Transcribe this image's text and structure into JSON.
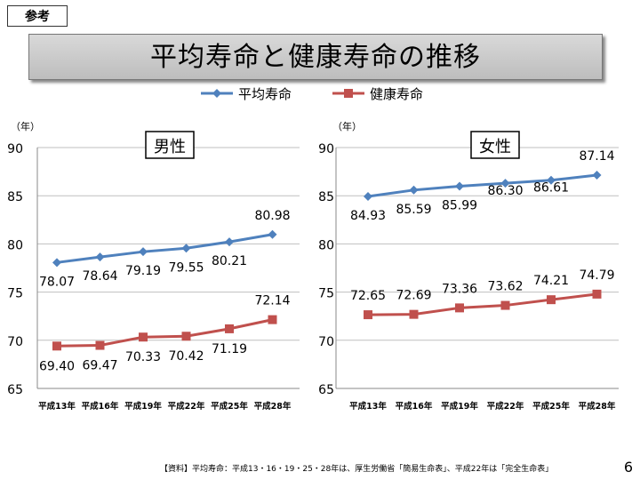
{
  "ref_label": "参考",
  "title": "平均寿命と健康寿命の推移",
  "legend": {
    "average": "平均寿命",
    "healthy": "健康寿命"
  },
  "colors": {
    "average": "#4f81bd",
    "healthy": "#c0504d",
    "grid": "#bfbfbf"
  },
  "chart_data": [
    {
      "type": "line",
      "title": "男性",
      "ylabel": "（年）",
      "ylim": [
        65,
        90
      ],
      "yticks": [
        65,
        70,
        75,
        80,
        85,
        90
      ],
      "categories": [
        "平成13年",
        "平成16年",
        "平成19年",
        "平成22年",
        "平成25年",
        "平成28年"
      ],
      "series": [
        {
          "name": "平均寿命",
          "values": [
            78.07,
            78.64,
            79.19,
            79.55,
            80.21,
            80.98
          ],
          "labels": [
            "78.07",
            "78.64",
            "79.19",
            "79.55",
            "80.21",
            "80.98"
          ]
        },
        {
          "name": "健康寿命",
          "values": [
            69.4,
            69.47,
            70.33,
            70.42,
            71.19,
            72.14
          ],
          "labels": [
            "69.40",
            "69.47",
            "70.33",
            "70.42",
            "71.19",
            "72.14"
          ]
        }
      ]
    },
    {
      "type": "line",
      "title": "女性",
      "ylabel": "（年）",
      "ylim": [
        65,
        90
      ],
      "yticks": [
        65,
        70,
        75,
        80,
        85,
        90
      ],
      "categories": [
        "平成13年",
        "平成16年",
        "平成19年",
        "平成22年",
        "平成25年",
        "平成28年"
      ],
      "series": [
        {
          "name": "平均寿命",
          "values": [
            84.93,
            85.59,
            85.99,
            86.3,
            86.61,
            87.14
          ],
          "labels": [
            "84.93",
            "85.59",
            "85.99",
            "86.30",
            "86.61",
            "87.14"
          ]
        },
        {
          "name": "健康寿命",
          "values": [
            72.65,
            72.69,
            73.36,
            73.62,
            74.21,
            74.79
          ],
          "labels": [
            "72.65",
            "72.69",
            "73.36",
            "73.62",
            "74.21",
            "74.79"
          ]
        }
      ]
    }
  ],
  "footnote": "【資料】平均寿命：平成13・16・19・25・28年は、厚生労働省「簡易生命表」、平成22年は「完全生命表」",
  "page_number": "6"
}
